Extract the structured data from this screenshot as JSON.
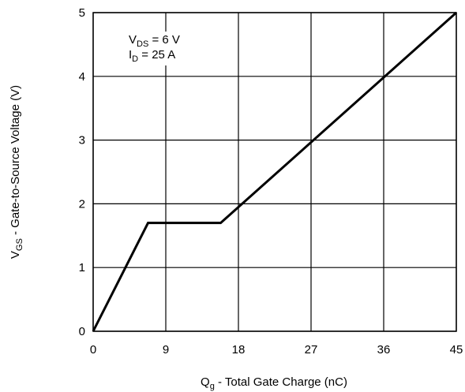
{
  "chart_data": {
    "type": "line",
    "title": "",
    "xlabel": {
      "main": "Q",
      "sub": "g",
      "rest": " - Total Gate Charge (nC)"
    },
    "ylabel": {
      "main": "V",
      "sub": "GS",
      "rest": " - Gate-to-Source Voltage (V)"
    },
    "xlim": [
      0,
      45
    ],
    "ylim": [
      0,
      5
    ],
    "xticks": [
      0,
      9,
      18,
      27,
      36,
      45
    ],
    "yticks": [
      0,
      1,
      2,
      3,
      4,
      5
    ],
    "grid": true,
    "annotations": [
      {
        "main": "V",
        "sub": "DS",
        "rest": " = 6 V"
      },
      {
        "main": "I",
        "sub": "D",
        "rest": " = 25 A"
      }
    ],
    "series": [
      {
        "x": [
          0,
          6.8,
          15.8,
          45
        ],
        "y": [
          0,
          1.7,
          1.7,
          5.0
        ]
      }
    ]
  }
}
